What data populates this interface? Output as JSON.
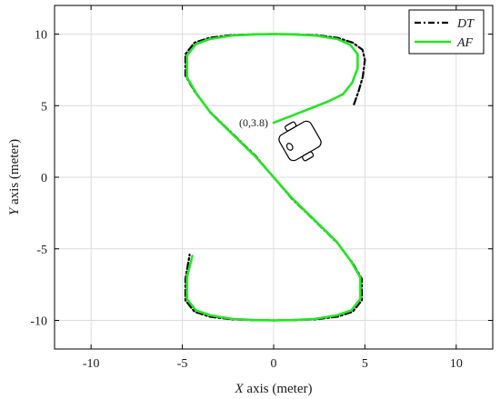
{
  "chart_data": {
    "type": "line",
    "title": "",
    "xlabel_var": "X",
    "xlabel_rest": " axis (meter)",
    "ylabel_var": "Y",
    "ylabel_rest": " axis (meter)",
    "xlim": [
      -12,
      12
    ],
    "ylim": [
      -12,
      12
    ],
    "xticks": [
      -10,
      -5,
      0,
      5,
      10
    ],
    "yticks": [
      -10,
      -5,
      0,
      5,
      10
    ],
    "grid": true,
    "legend_position": "top-right",
    "series": [
      {
        "name": "DT",
        "style": "dash-dot",
        "color": "#000000",
        "x": [
          4.4,
          4.65,
          4.88,
          5.0,
          4.87,
          4.33,
          3.5,
          2.3,
          1.0,
          0.0,
          -1.0,
          -2.3,
          -3.5,
          -4.33,
          -4.83,
          -4.83,
          -4.33,
          -3.5,
          -2.3,
          -1.0,
          0.0,
          1.0,
          2.3,
          3.5,
          4.33,
          4.83,
          4.83,
          4.33,
          3.5,
          2.3,
          1.0,
          0.0,
          -1.0,
          -2.3,
          -3.5,
          -4.33,
          -4.83,
          -4.83,
          -4.6
        ],
        "y": [
          5.1,
          6.0,
          7.0,
          8.2,
          8.9,
          9.4,
          9.74,
          9.93,
          9.99,
          10.0,
          9.99,
          9.93,
          9.74,
          9.4,
          8.6,
          7.1,
          6.0,
          4.6,
          3.1,
          1.5,
          0.0,
          -1.5,
          -3.1,
          -4.6,
          -6.0,
          -7.1,
          -8.6,
          -9.4,
          -9.74,
          -9.93,
          -9.99,
          -10.0,
          -9.99,
          -9.93,
          -9.74,
          -9.4,
          -8.6,
          -7.1,
          -5.4
        ]
      },
      {
        "name": "AF",
        "style": "solid",
        "color": "#22e622",
        "x": [
          0.0,
          1.0,
          2.0,
          3.0,
          3.8,
          4.3,
          4.6,
          4.6,
          4.2,
          3.5,
          2.3,
          1.0,
          0.0,
          -1.0,
          -2.3,
          -3.5,
          -4.25,
          -4.75,
          -4.75,
          -4.25,
          -3.45,
          -2.25,
          -1.0,
          0.0,
          1.0,
          2.25,
          3.45,
          4.25,
          4.75,
          4.75,
          4.25,
          3.45,
          2.25,
          1.0,
          0.0,
          -1.0,
          -2.25,
          -3.45,
          -4.25,
          -4.75,
          -4.75,
          -4.45
        ],
        "y": [
          3.8,
          4.3,
          4.8,
          5.3,
          5.8,
          6.6,
          7.6,
          8.6,
          9.25,
          9.65,
          9.9,
          9.98,
          10.0,
          9.98,
          9.9,
          9.65,
          9.3,
          8.5,
          7.0,
          5.9,
          4.5,
          3.0,
          1.45,
          0.0,
          -1.45,
          -3.0,
          -4.5,
          -5.9,
          -7.0,
          -8.5,
          -9.3,
          -9.65,
          -9.9,
          -9.98,
          -10.0,
          -9.98,
          -9.9,
          -9.65,
          -9.3,
          -8.5,
          -7.0,
          -5.5
        ]
      }
    ],
    "annotations": [
      {
        "text": "(0,3.8)",
        "x": 0.0,
        "y": 3.8
      }
    ]
  }
}
